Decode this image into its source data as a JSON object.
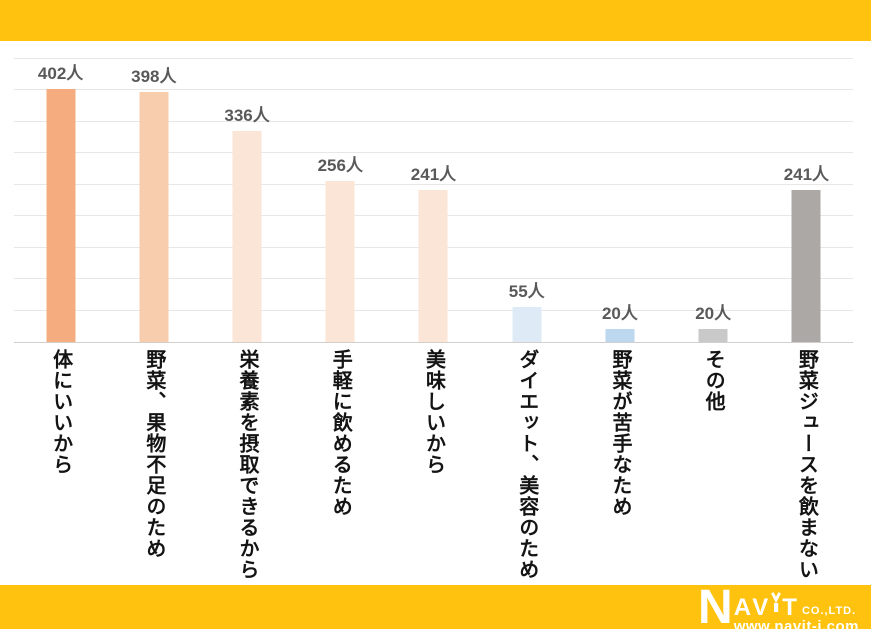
{
  "page": {
    "accent_color": "#FEC20F",
    "background": "#FFFFFF"
  },
  "chart_data": {
    "type": "bar",
    "title": "",
    "xlabel": "",
    "ylabel": "",
    "categories": [
      "体にいいから",
      "野菜、果物不足のため",
      "栄養素を摂取できるから",
      "手軽に飲めるため",
      "美味しいから",
      "ダイエット、美容のため",
      "野菜が苦手なため",
      "その他",
      "野菜ジュースを飲まない"
    ],
    "values": [
      402,
      398,
      336,
      256,
      241,
      55,
      20,
      20,
      241
    ],
    "value_labels": [
      "402人",
      "398人",
      "336人",
      "256人",
      "241人",
      "55人",
      "20人",
      "20人",
      "241人"
    ],
    "unit": "人",
    "bar_colors": [
      "#F5AC7E",
      "#F8CDAD",
      "#FBE5D6",
      "#FBE5D6",
      "#FBE5D6",
      "#DEEBF7",
      "#BDD7EE",
      "#C9C9C9",
      "#ACA8A5"
    ],
    "ylim": [
      0,
      450
    ],
    "gridline_step": 50,
    "grid": true,
    "legend_position": "none",
    "y_tick_labels_visible": false,
    "gridline_color": "#E9E7E6",
    "baseline_color": "#D2CFCD",
    "value_label_color": "#595959",
    "category_label_color": "#141414"
  },
  "footer": {
    "logo_n": "N",
    "logo_av": "AV",
    "logo_t": "T",
    "logo_co": "CO.,LTD.",
    "logo_web": "www.navit-j.com"
  }
}
